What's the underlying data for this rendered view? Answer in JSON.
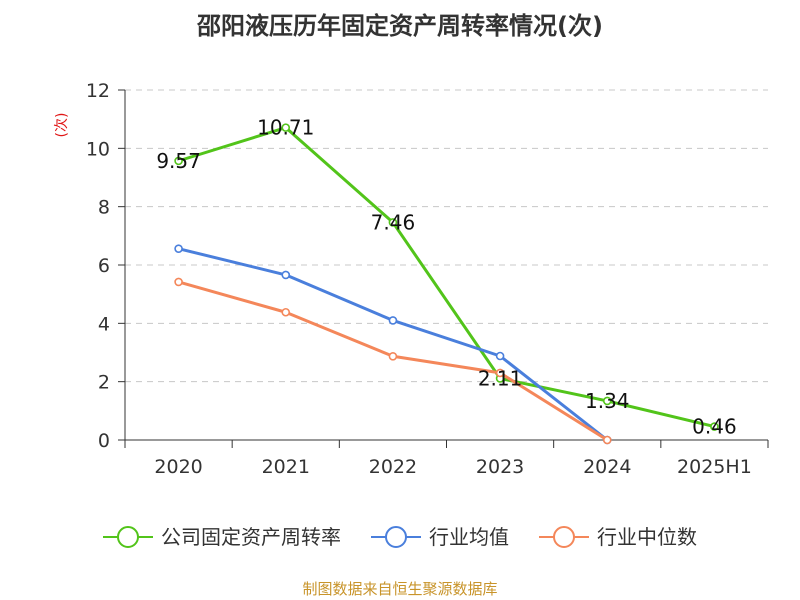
{
  "chart_data": {
    "type": "line",
    "title": "邵阳液压历年固定资产周转率情况(次)",
    "ylabel": "(次)",
    "xlabel": "",
    "categories": [
      "2020",
      "2021",
      "2022",
      "2023",
      "2024",
      "2025H1"
    ],
    "ylim": [
      0,
      12
    ],
    "yticks": [
      0,
      2,
      4,
      6,
      8,
      10,
      12
    ],
    "grid": true,
    "legend_position": "bottom",
    "series": [
      {
        "name": "公司固定资产周转率",
        "color": "#52c41a",
        "values": [
          9.57,
          10.71,
          7.46,
          2.11,
          1.34,
          0.46
        ],
        "labels": [
          "9.57",
          "10.71",
          "7.46",
          "2.11",
          "1.34",
          "0.46"
        ]
      },
      {
        "name": "行业均值",
        "color": "#4a7fdc",
        "values": [
          6.56,
          5.66,
          4.1,
          2.88,
          0.0,
          null
        ]
      },
      {
        "name": "行业中位数",
        "color": "#f4875a",
        "values": [
          5.42,
          4.38,
          2.87,
          2.3,
          0.0,
          null
        ]
      }
    ]
  },
  "source": "制图数据来自恒生聚源数据库"
}
